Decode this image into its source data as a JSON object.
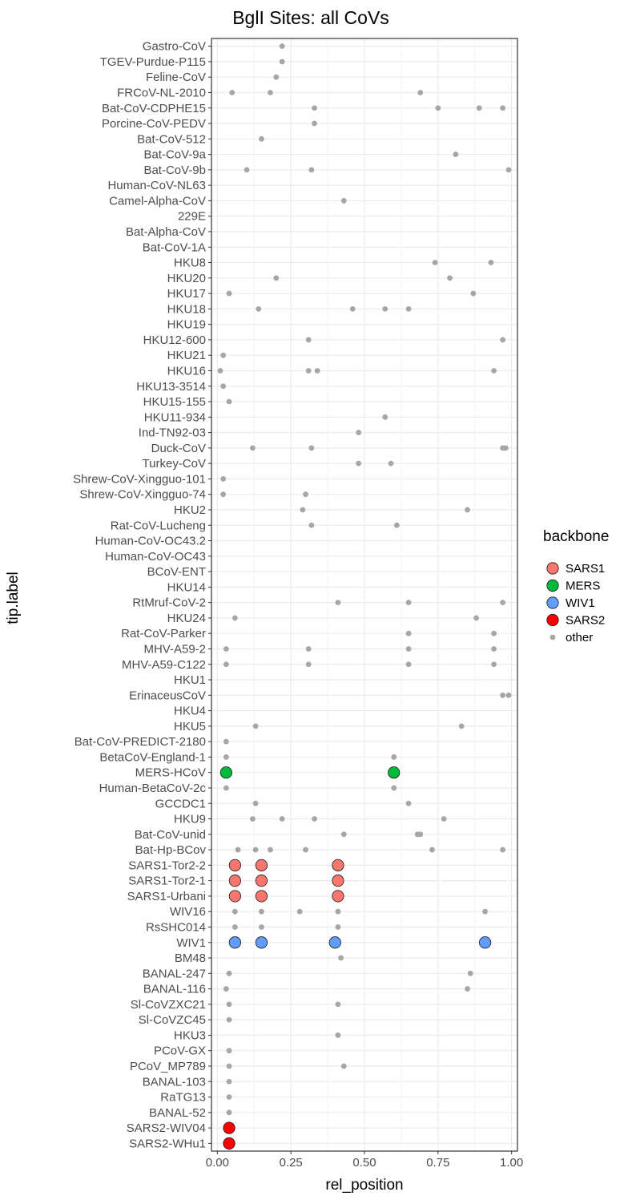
{
  "chart_data": {
    "type": "scatter",
    "title": "BglI Sites: all CoVs",
    "xlabel": "rel_position",
    "ylabel": "tip.label",
    "xlim": [
      -0.02,
      1.02
    ],
    "x_ticks": [
      0.0,
      0.25,
      0.5,
      0.75,
      1.0
    ],
    "x_tick_labels": [
      "0.00",
      "0.25",
      "0.50",
      "0.75",
      "1.00"
    ],
    "grid": true,
    "legend": {
      "title": "backbone",
      "position": "right",
      "entries": [
        {
          "name": "SARS1",
          "color": "#F8766D"
        },
        {
          "name": "MERS",
          "color": "#00BA38"
        },
        {
          "name": "WIV1",
          "color": "#619CFF"
        },
        {
          "name": "SARS2",
          "color": "#FF0000"
        },
        {
          "name": "other",
          "color": "#A6A6A6"
        }
      ]
    },
    "categories": [
      "Gastro-CoV",
      "TGEV-Purdue-P115",
      "Feline-CoV",
      "FRCoV-NL-2010",
      "Bat-CoV-CDPHE15",
      "Porcine-CoV-PEDV",
      "Bat-CoV-512",
      "Bat-CoV-9a",
      "Bat-CoV-9b",
      "Human-CoV-NL63",
      "Camel-Alpha-CoV",
      "229E",
      "Bat-Alpha-CoV",
      "Bat-CoV-1A",
      "HKU8",
      "HKU20",
      "HKU17",
      "HKU18",
      "HKU19",
      "HKU12-600",
      "HKU21",
      "HKU16",
      "HKU13-3514",
      "HKU15-155",
      "HKU11-934",
      "Ind-TN92-03",
      "Duck-CoV",
      "Turkey-CoV",
      "Shrew-CoV-Xingguo-101",
      "Shrew-CoV-Xingguo-74",
      "HKU2",
      "Rat-CoV-Lucheng",
      "Human-CoV-OC43.2",
      "Human-CoV-OC43",
      "BCoV-ENT",
      "HKU14",
      "RtMruf-CoV-2",
      "HKU24",
      "Rat-CoV-Parker",
      "MHV-A59-2",
      "MHV-A59-C122",
      "HKU1",
      "ErinaceusCoV",
      "HKU4",
      "HKU5",
      "Bat-CoV-PREDICT-2180",
      "BetaCoV-England-1",
      "MERS-HCoV",
      "Human-BetaCoV-2c",
      "GCCDC1",
      "HKU9",
      "Bat-CoV-unid",
      "Bat-Hp-BCov",
      "SARS1-Tor2-2",
      "SARS1-Tor2-1",
      "SARS1-Urbani",
      "WIV16",
      "RsSHC014",
      "WIV1",
      "BM48",
      "BANAL-247",
      "BANAL-116",
      "Sl-CoVZXC21",
      "Sl-CoVZC45",
      "HKU3",
      "PCoV-GX",
      "PCoV_MP789",
      "BANAL-103",
      "RaTG13",
      "BANAL-52",
      "SARS2-WIV04",
      "SARS2-WHu1"
    ],
    "series": [
      {
        "name": "other",
        "color": "#A6A6A6",
        "points": [
          [
            "Gastro-CoV",
            0.22
          ],
          [
            "TGEV-Purdue-P115",
            0.22
          ],
          [
            "Feline-CoV",
            0.2
          ],
          [
            "FRCoV-NL-2010",
            0.05
          ],
          [
            "FRCoV-NL-2010",
            0.18
          ],
          [
            "FRCoV-NL-2010",
            0.69
          ],
          [
            "Bat-CoV-CDPHE15",
            0.33
          ],
          [
            "Bat-CoV-CDPHE15",
            0.75
          ],
          [
            "Bat-CoV-CDPHE15",
            0.89
          ],
          [
            "Bat-CoV-CDPHE15",
            0.97
          ],
          [
            "Porcine-CoV-PEDV",
            0.33
          ],
          [
            "Bat-CoV-512",
            0.15
          ],
          [
            "Bat-CoV-9a",
            0.81
          ],
          [
            "Bat-CoV-9b",
            0.1
          ],
          [
            "Bat-CoV-9b",
            0.32
          ],
          [
            "Bat-CoV-9b",
            0.99
          ],
          [
            "Camel-Alpha-CoV",
            0.43
          ],
          [
            "HKU8",
            0.74
          ],
          [
            "HKU8",
            0.93
          ],
          [
            "HKU20",
            0.2
          ],
          [
            "HKU20",
            0.79
          ],
          [
            "HKU17",
            0.04
          ],
          [
            "HKU17",
            0.87
          ],
          [
            "HKU18",
            0.14
          ],
          [
            "HKU18",
            0.46
          ],
          [
            "HKU18",
            0.57
          ],
          [
            "HKU18",
            0.65
          ],
          [
            "HKU12-600",
            0.31
          ],
          [
            "HKU12-600",
            0.97
          ],
          [
            "HKU21",
            0.02
          ],
          [
            "HKU16",
            0.01
          ],
          [
            "HKU16",
            0.31
          ],
          [
            "HKU16",
            0.34
          ],
          [
            "HKU16",
            0.94
          ],
          [
            "HKU13-3514",
            0.02
          ],
          [
            "HKU15-155",
            0.04
          ],
          [
            "HKU11-934",
            0.57
          ],
          [
            "Ind-TN92-03",
            0.48
          ],
          [
            "Duck-CoV",
            0.12
          ],
          [
            "Duck-CoV",
            0.32
          ],
          [
            "Duck-CoV",
            0.97
          ],
          [
            "Duck-CoV",
            0.98
          ],
          [
            "Turkey-CoV",
            0.48
          ],
          [
            "Turkey-CoV",
            0.59
          ],
          [
            "Shrew-CoV-Xingguo-101",
            0.02
          ],
          [
            "Shrew-CoV-Xingguo-74",
            0.02
          ],
          [
            "Shrew-CoV-Xingguo-74",
            0.3
          ],
          [
            "HKU2",
            0.29
          ],
          [
            "HKU2",
            0.85
          ],
          [
            "Rat-CoV-Lucheng",
            0.32
          ],
          [
            "Rat-CoV-Lucheng",
            0.61
          ],
          [
            "RtMruf-CoV-2",
            0.41
          ],
          [
            "RtMruf-CoV-2",
            0.65
          ],
          [
            "RtMruf-CoV-2",
            0.97
          ],
          [
            "HKU24",
            0.06
          ],
          [
            "HKU24",
            0.88
          ],
          [
            "Rat-CoV-Parker",
            0.65
          ],
          [
            "Rat-CoV-Parker",
            0.94
          ],
          [
            "MHV-A59-2",
            0.03
          ],
          [
            "MHV-A59-2",
            0.31
          ],
          [
            "MHV-A59-2",
            0.65
          ],
          [
            "MHV-A59-2",
            0.94
          ],
          [
            "MHV-A59-C122",
            0.03
          ],
          [
            "MHV-A59-C122",
            0.31
          ],
          [
            "MHV-A59-C122",
            0.65
          ],
          [
            "MHV-A59-C122",
            0.94
          ],
          [
            "ErinaceusCoV",
            0.97
          ],
          [
            "ErinaceusCoV",
            0.99
          ],
          [
            "HKU5",
            0.13
          ],
          [
            "HKU5",
            0.83
          ],
          [
            "Bat-CoV-PREDICT-2180",
            0.03
          ],
          [
            "BetaCoV-England-1",
            0.03
          ],
          [
            "BetaCoV-England-1",
            0.6
          ],
          [
            "Human-BetaCoV-2c",
            0.03
          ],
          [
            "Human-BetaCoV-2c",
            0.6
          ],
          [
            "GCCDC1",
            0.13
          ],
          [
            "GCCDC1",
            0.65
          ],
          [
            "HKU9",
            0.12
          ],
          [
            "HKU9",
            0.22
          ],
          [
            "HKU9",
            0.33
          ],
          [
            "HKU9",
            0.77
          ],
          [
            "Bat-CoV-unid",
            0.43
          ],
          [
            "Bat-CoV-unid",
            0.68
          ],
          [
            "Bat-CoV-unid",
            0.69
          ],
          [
            "Bat-Hp-BCov",
            0.07
          ],
          [
            "Bat-Hp-BCov",
            0.13
          ],
          [
            "Bat-Hp-BCov",
            0.18
          ],
          [
            "Bat-Hp-BCov",
            0.3
          ],
          [
            "Bat-Hp-BCov",
            0.73
          ],
          [
            "Bat-Hp-BCov",
            0.97
          ],
          [
            "WIV16",
            0.06
          ],
          [
            "WIV16",
            0.15
          ],
          [
            "WIV16",
            0.28
          ],
          [
            "WIV16",
            0.41
          ],
          [
            "WIV16",
            0.91
          ],
          [
            "RsSHC014",
            0.06
          ],
          [
            "RsSHC014",
            0.15
          ],
          [
            "RsSHC014",
            0.41
          ],
          [
            "BM48",
            0.42
          ],
          [
            "BANAL-247",
            0.04
          ],
          [
            "BANAL-247",
            0.86
          ],
          [
            "BANAL-116",
            0.03
          ],
          [
            "BANAL-116",
            0.85
          ],
          [
            "Sl-CoVZXC21",
            0.04
          ],
          [
            "Sl-CoVZXC21",
            0.41
          ],
          [
            "Sl-CoVZC45",
            0.04
          ],
          [
            "HKU3",
            0.41
          ],
          [
            "PCoV-GX",
            0.04
          ],
          [
            "PCoV_MP789",
            0.04
          ],
          [
            "PCoV_MP789",
            0.43
          ],
          [
            "BANAL-103",
            0.04
          ],
          [
            "RaTG13",
            0.04
          ],
          [
            "BANAL-52",
            0.04
          ]
        ]
      },
      {
        "name": "SARS1",
        "color": "#F8766D",
        "points": [
          [
            "SARS1-Tor2-2",
            0.06
          ],
          [
            "SARS1-Tor2-2",
            0.15
          ],
          [
            "SARS1-Tor2-2",
            0.41
          ],
          [
            "SARS1-Tor2-1",
            0.06
          ],
          [
            "SARS1-Tor2-1",
            0.15
          ],
          [
            "SARS1-Tor2-1",
            0.41
          ],
          [
            "SARS1-Urbani",
            0.06
          ],
          [
            "SARS1-Urbani",
            0.15
          ],
          [
            "SARS1-Urbani",
            0.41
          ]
        ]
      },
      {
        "name": "MERS",
        "color": "#00BA38",
        "points": [
          [
            "MERS-HCoV",
            0.03
          ],
          [
            "MERS-HCoV",
            0.6
          ]
        ]
      },
      {
        "name": "WIV1",
        "color": "#619CFF",
        "points": [
          [
            "WIV1",
            0.06
          ],
          [
            "WIV1",
            0.15
          ],
          [
            "WIV1",
            0.4
          ],
          [
            "WIV1",
            0.91
          ]
        ]
      },
      {
        "name": "SARS2",
        "color": "#FF0000",
        "points": [
          [
            "SARS2-WIV04",
            0.04
          ],
          [
            "SARS2-WHu1",
            0.04
          ]
        ]
      }
    ]
  }
}
